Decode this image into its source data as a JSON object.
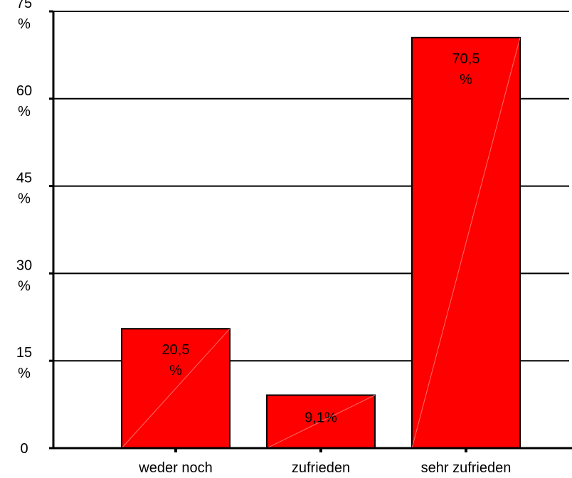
{
  "chart_data": {
    "type": "bar",
    "categories": [
      "weder noch",
      "zufrieden",
      "sehr zufrieden"
    ],
    "values": [
      20.5,
      9.1,
      70.5
    ],
    "value_labels": [
      [
        "20,5",
        "%"
      ],
      [
        "9,1%"
      ],
      [
        "70,5",
        "%"
      ]
    ],
    "y_ticks": [
      0,
      15,
      30,
      45,
      60,
      75
    ],
    "y_tick_labels": [
      [
        "0"
      ],
      [
        "15",
        "%"
      ],
      [
        "30",
        "%"
      ],
      [
        "45",
        "%"
      ],
      [
        "60",
        "%"
      ],
      [
        "75",
        "%"
      ]
    ],
    "ylim": [
      0,
      75
    ],
    "grid": true,
    "bar_color": "#ff0000",
    "title": "",
    "xlabel": "",
    "ylabel": ""
  }
}
